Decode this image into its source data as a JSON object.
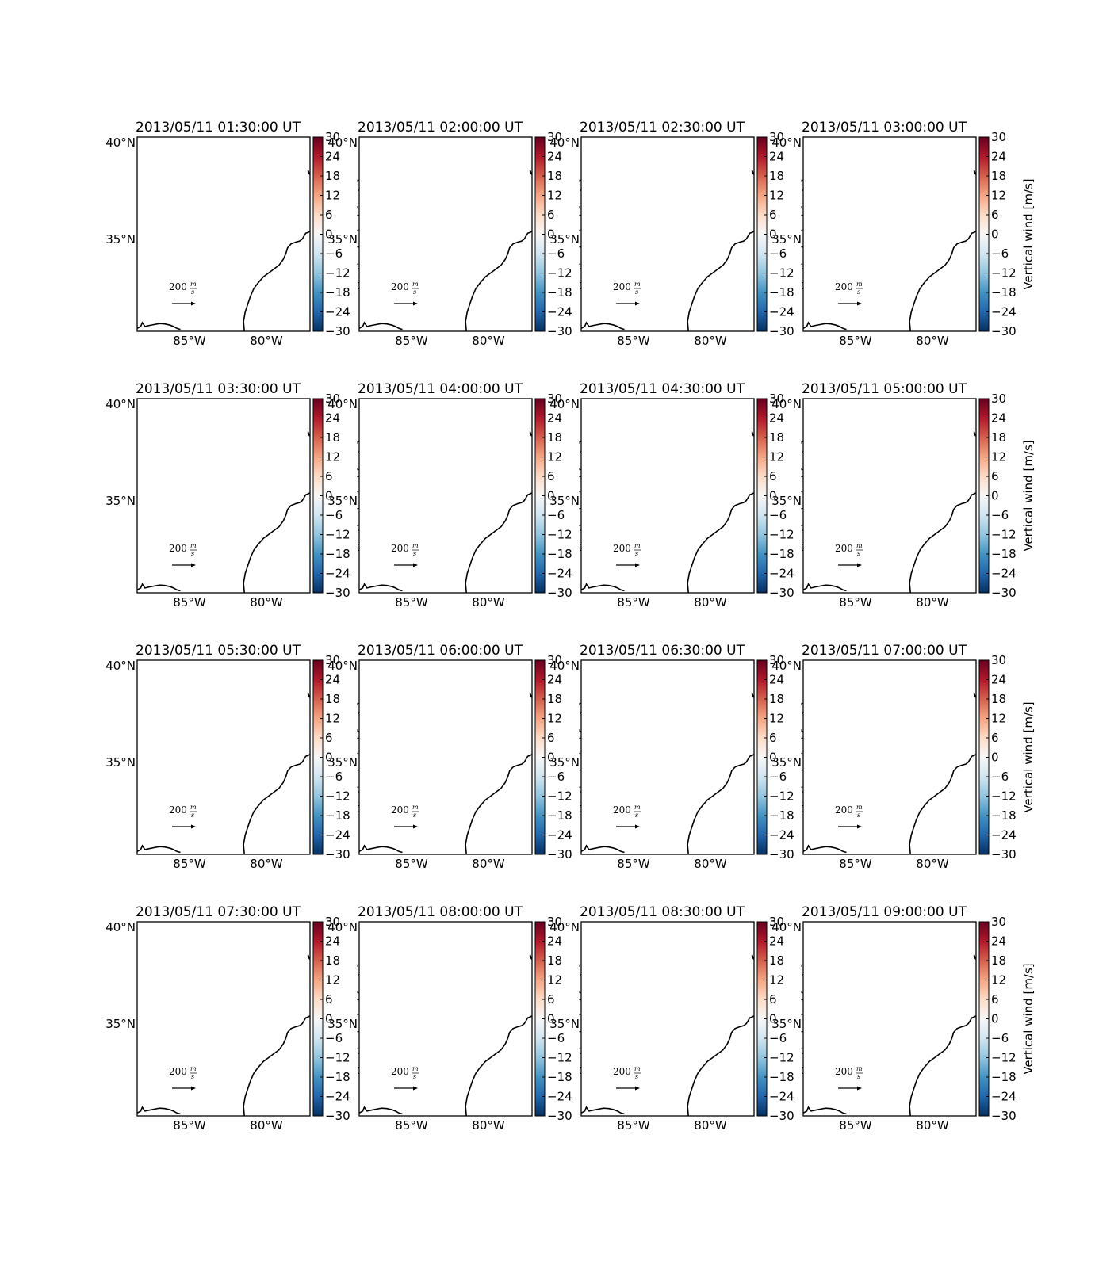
{
  "figure": {
    "colorbar_label": "Vertical wind [m/s]",
    "colorbar_ticks": [
      "30",
      "24",
      "18",
      "12",
      "6",
      "0",
      "−6",
      "−12",
      "−18",
      "−24",
      "−30"
    ],
    "lat_labels": [
      "40°N",
      "35°N"
    ],
    "lon_labels": [
      "85°W",
      "80°W"
    ],
    "quiver_key": {
      "value": "200",
      "unit_num": "m",
      "unit_den": "s"
    },
    "colormap": {
      "low": "#053061",
      "mid": "#f7f7f7",
      "high": "#67001f"
    }
  },
  "chart_data": {
    "type": "heatmap",
    "panel_count": 16,
    "layout": {
      "rows": 4,
      "cols": 4
    },
    "titles": [
      "2013/05/11 01:30:00 UT",
      "2013/05/11 02:00:00 UT",
      "2013/05/11 02:30:00 UT",
      "2013/05/11 03:00:00 UT",
      "2013/05/11 03:30:00 UT",
      "2013/05/11 04:00:00 UT",
      "2013/05/11 04:30:00 UT",
      "2013/05/11 05:00:00 UT",
      "2013/05/11 05:30:00 UT",
      "2013/05/11 06:00:00 UT",
      "2013/05/11 06:30:00 UT",
      "2013/05/11 07:00:00 UT",
      "2013/05/11 07:30:00 UT",
      "2013/05/11 08:00:00 UT",
      "2013/05/11 08:30:00 UT",
      "2013/05/11 09:00:00 UT"
    ],
    "colorbar": {
      "min": -30,
      "max": 30,
      "step": 6,
      "cmap": "RdBu_r",
      "label": "Vertical wind [m/s]"
    },
    "map_extent": {
      "lon_ticks": [
        -85,
        -80
      ],
      "lat_ticks": [
        40,
        35
      ]
    },
    "quiver_reference": {
      "value": 200,
      "units": "m/s"
    }
  }
}
